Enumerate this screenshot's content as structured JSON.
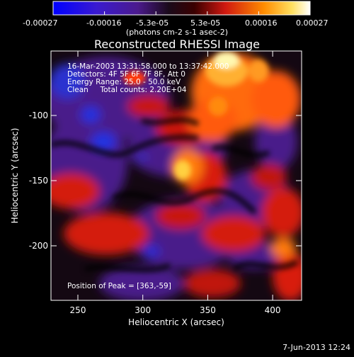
{
  "chart_data": {
    "type": "heatmap",
    "title": "Reconstructed RHESSI Image",
    "xlabel": "Heliocentric X (arcsec)",
    "ylabel": "Heliocentric Y (arcsec)",
    "xlim": [
      233,
      426
    ],
    "ylim": [
      -240,
      -57
    ],
    "x_ticks": [
      250,
      300,
      350,
      400
    ],
    "x_tick_labels": [
      "250",
      "300",
      "350",
      "400"
    ],
    "y_ticks": [
      -100,
      -150,
      -200
    ],
    "y_tick_labels": [
      "-100",
      "-150",
      "-200"
    ],
    "colorbar": {
      "range": [
        -0.00027,
        0.00027
      ],
      "ticks": [
        -0.00027,
        -0.00016,
        -5.3e-05,
        5.3e-05,
        0.00016,
        0.00027
      ],
      "tick_labels": [
        "-0.00027",
        "-0.00016",
        "-5.3e-05",
        "5.3e-05",
        "0.00016",
        "0.00027"
      ],
      "unit_label": "(photons cm-2 s-1 asec-2)",
      "colors": [
        "#0000ff",
        "#4b1a8c",
        "#000000",
        "#e02010",
        "#ff8c00",
        "#ffff80",
        "#ffffff"
      ]
    },
    "annotations": [
      "16-Mar-2003 13:31:58.000 to 13:37:42.000",
      "Detectors: 4F 5F 6F 7F 8F, Att 0",
      "Energy Range: 25.0 - 50.0 keV",
      "Clean     Total counts: 2.20E+04"
    ],
    "peak_label": "Position of Peak = [363,-59]",
    "peak": [
      363,
      -59
    ],
    "grid": false
  },
  "footer": {
    "date": "7-Jun-2013 12:24"
  }
}
